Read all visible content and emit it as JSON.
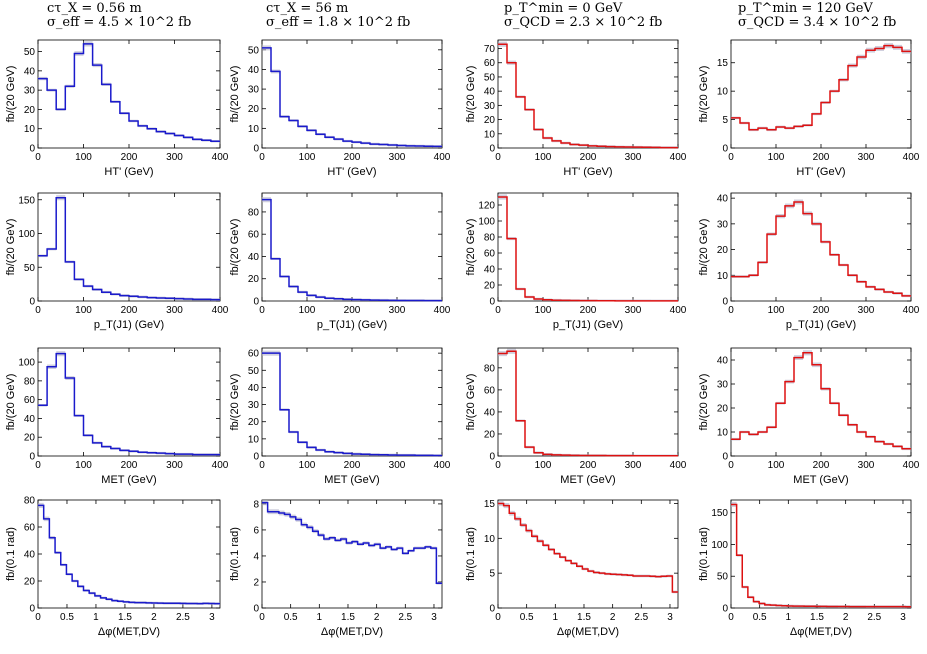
{
  "columns": [
    {
      "line1": "cτ_X = 0.56 m",
      "line2": "σ_eff = 4.5 × 10^2 fb"
    },
    {
      "line1": "cτ_X = 56 m",
      "line2": "σ_eff = 1.8 × 10^2 fb"
    },
    {
      "line1": "p_T^min = 0 GeV",
      "line2": "σ_QCD = 2.3 × 10^2 fb"
    },
    {
      "line1": "p_T^min = 120 GeV",
      "line2": "σ_QCD = 3.4 × 10^2 fb"
    }
  ],
  "colors": {
    "blue": "#1a1acc",
    "red": "#dd1111",
    "band": "#b0b0c8"
  },
  "chart_data": [
    {
      "type": "line",
      "step": true,
      "color": "red_or_blue",
      "row": 0,
      "col": 0,
      "xlabel": "HT' (GeV)",
      "ylabel": "fb/(20 GeV)",
      "xlim": [
        0,
        400
      ],
      "ylim": [
        0,
        56
      ],
      "xticks": [
        0,
        100,
        200,
        300,
        400
      ],
      "yticks": [
        0,
        10,
        20,
        30,
        40,
        50
      ],
      "series": [
        {
          "values": [
            36,
            30,
            20,
            32,
            49,
            54,
            43,
            33,
            24,
            18,
            14,
            11.5,
            10,
            8.5,
            7.5,
            6.5,
            5.5,
            4.5,
            4,
            3.5
          ]
        }
      ]
    },
    {
      "type": "line",
      "step": true,
      "row": 0,
      "col": 1,
      "xlabel": "HT' (GeV)",
      "ylabel": "fb/(20 GeV)",
      "xlim": [
        0,
        400
      ],
      "ylim": [
        0,
        55
      ],
      "xticks": [
        0,
        100,
        200,
        300,
        400
      ],
      "yticks": [
        0,
        10,
        20,
        30,
        40,
        50
      ],
      "series": [
        {
          "values": [
            51,
            39,
            16,
            14,
            11,
            9,
            7,
            5.5,
            4.5,
            3.5,
            3,
            2.5,
            2,
            1.8,
            1.5,
            1.3,
            1.1,
            1,
            0.9,
            0.8
          ]
        }
      ]
    },
    {
      "type": "line",
      "step": true,
      "row": 0,
      "col": 2,
      "xlabel": "HT' (GeV)",
      "ylabel": "fb/(20 GeV)",
      "xlim": [
        0,
        400
      ],
      "ylim": [
        0,
        76
      ],
      "xticks": [
        0,
        100,
        200,
        300,
        400
      ],
      "yticks": [
        0,
        10,
        20,
        30,
        40,
        50,
        60,
        70
      ],
      "series": [
        {
          "values": [
            73,
            60,
            36,
            27,
            13,
            7,
            5,
            3.5,
            2.5,
            2,
            1.5,
            1.2,
            1,
            0.8,
            0.7,
            0.6,
            0.5,
            0.4,
            0.3,
            0.3
          ]
        }
      ]
    },
    {
      "type": "line",
      "step": true,
      "row": 0,
      "col": 3,
      "xlabel": "HT' (GeV)",
      "ylabel": "fb/(20 GeV)",
      "xlim": [
        0,
        400
      ],
      "ylim": [
        0,
        19
      ],
      "xticks": [
        0,
        100,
        200,
        300,
        400
      ],
      "yticks": [
        0,
        5,
        10,
        15
      ],
      "series": [
        {
          "values": [
            5.3,
            4.4,
            3.2,
            3.5,
            3.2,
            3.7,
            3.5,
            3.8,
            4,
            6,
            8,
            10,
            12,
            14.5,
            16,
            17.2,
            17.5,
            18,
            17.7,
            17
          ]
        }
      ]
    },
    {
      "type": "line",
      "step": true,
      "row": 1,
      "col": 0,
      "xlabel": "p_T(J1) (GeV)",
      "ylabel": "fb/(20 GeV)",
      "xlim": [
        0,
        400
      ],
      "ylim": [
        0,
        160
      ],
      "xticks": [
        0,
        100,
        200,
        300,
        400
      ],
      "yticks": [
        0,
        50,
        100,
        150
      ],
      "series": [
        {
          "values": [
            67,
            77,
            153,
            58,
            32,
            22,
            17,
            13,
            10,
            8,
            7,
            6,
            5,
            4.5,
            4,
            3.5,
            3,
            2.5,
            2.5,
            2
          ]
        }
      ]
    },
    {
      "type": "line",
      "step": true,
      "row": 1,
      "col": 1,
      "xlabel": "p_T(J1) (GeV)",
      "ylabel": "fb/(20 GeV)",
      "xlim": [
        0,
        400
      ],
      "ylim": [
        0,
        97
      ],
      "xticks": [
        0,
        100,
        200,
        300,
        400
      ],
      "yticks": [
        0,
        20,
        40,
        60,
        80
      ],
      "series": [
        {
          "values": [
            91,
            38,
            22,
            13,
            8,
            5,
            3.5,
            2.5,
            2,
            1.5,
            1.2,
            1,
            0.8,
            0.7,
            0.6,
            0.5,
            0.4,
            0.4,
            0.3,
            0.3
          ]
        }
      ]
    },
    {
      "type": "line",
      "step": true,
      "row": 1,
      "col": 2,
      "xlabel": "p_T(J1) (GeV)",
      "ylabel": "fb/(20 GeV)",
      "xlim": [
        0,
        400
      ],
      "ylim": [
        0,
        135
      ],
      "xticks": [
        0,
        100,
        200,
        300,
        400
      ],
      "yticks": [
        0,
        20,
        40,
        60,
        80,
        100,
        120
      ],
      "series": [
        {
          "values": [
            130,
            78,
            15,
            5,
            2.5,
            1.5,
            1,
            0.8,
            0.6,
            0.5,
            0.4,
            0.3,
            0.3,
            0.2,
            0.2,
            0.2,
            0.2,
            0.1,
            0.1,
            0.1
          ]
        }
      ]
    },
    {
      "type": "line",
      "step": true,
      "row": 1,
      "col": 3,
      "xlabel": "p_T(J1) (GeV)",
      "ylabel": "fb/(20 GeV)",
      "xlim": [
        0,
        400
      ],
      "ylim": [
        0,
        42
      ],
      "xticks": [
        0,
        100,
        200,
        300,
        400
      ],
      "yticks": [
        0,
        10,
        20,
        30,
        40
      ],
      "series": [
        {
          "values": [
            9.5,
            9.5,
            10,
            15,
            26,
            33,
            37,
            38.5,
            34,
            30,
            23,
            18,
            14,
            10,
            7.5,
            5.5,
            4.5,
            3.5,
            3,
            2
          ]
        }
      ]
    },
    {
      "type": "line",
      "step": true,
      "row": 2,
      "col": 0,
      "xlabel": "MET (GeV)",
      "ylabel": "fb/(20 GeV)",
      "xlim": [
        0,
        400
      ],
      "ylim": [
        0,
        115
      ],
      "xticks": [
        0,
        100,
        200,
        300,
        400
      ],
      "yticks": [
        0,
        20,
        40,
        60,
        80,
        100
      ],
      "series": [
        {
          "values": [
            54,
            95,
            109,
            83,
            43,
            22,
            14,
            10,
            8,
            6,
            5,
            4,
            3.5,
            3,
            2.5,
            2,
            2,
            1.5,
            1.5,
            1.5
          ]
        }
      ]
    },
    {
      "type": "line",
      "step": true,
      "row": 2,
      "col": 1,
      "xlabel": "MET (GeV)",
      "ylabel": "fb/(20 GeV)",
      "xlim": [
        0,
        400
      ],
      "ylim": [
        0,
        63
      ],
      "xticks": [
        0,
        100,
        200,
        300,
        400
      ],
      "yticks": [
        0,
        10,
        20,
        30,
        40,
        50,
        60
      ],
      "series": [
        {
          "values": [
            60,
            60,
            27,
            14,
            8,
            5,
            3.5,
            2.5,
            2,
            1.5,
            1.2,
            1,
            0.8,
            0.7,
            0.6,
            0.5,
            0.5,
            0.4,
            0.4,
            0.3
          ]
        }
      ]
    },
    {
      "type": "line",
      "step": true,
      "row": 2,
      "col": 2,
      "xlabel": "MET (GeV)",
      "ylabel": "fb/(20 GeV)",
      "xlim": [
        0,
        400
      ],
      "ylim": [
        0,
        98
      ],
      "xticks": [
        0,
        100,
        200,
        300,
        400
      ],
      "yticks": [
        0,
        20,
        40,
        60,
        80
      ],
      "series": [
        {
          "values": [
            93,
            95,
            32,
            8,
            3,
            1.5,
            1,
            0.8,
            0.6,
            0.5,
            0.4,
            0.4,
            0.3,
            0.3,
            0.3,
            0.2,
            0.2,
            0.2,
            0.2,
            0.2
          ]
        }
      ]
    },
    {
      "type": "line",
      "step": true,
      "row": 2,
      "col": 3,
      "xlabel": "MET (GeV)",
      "ylabel": "fb/(20 GeV)",
      "xlim": [
        0,
        400
      ],
      "ylim": [
        0,
        45
      ],
      "xticks": [
        0,
        100,
        200,
        300,
        400
      ],
      "yticks": [
        0,
        10,
        20,
        30,
        40
      ],
      "series": [
        {
          "values": [
            7,
            10,
            9,
            10,
            12,
            22,
            31,
            41,
            43,
            38,
            28,
            22,
            17,
            13,
            10,
            8,
            6,
            5,
            4,
            3
          ]
        }
      ]
    },
    {
      "type": "line",
      "step": true,
      "row": 3,
      "col": 0,
      "xlabel": "Δφ(MET,DV)",
      "ylabel": "fb/(0.1 rad)",
      "xlim": [
        0,
        3.14
      ],
      "ylim": [
        0,
        80
      ],
      "xticks": [
        0,
        0.5,
        1,
        1.5,
        2,
        2.5,
        3
      ],
      "yticks": [
        0,
        20,
        40,
        60,
        80
      ],
      "series": [
        {
          "values": [
            76,
            66,
            52,
            41,
            32,
            25,
            20,
            16,
            13,
            11,
            9,
            7.5,
            6.5,
            5.5,
            5,
            4.5,
            4.2,
            4,
            4,
            3.8,
            3.7,
            3.6,
            3.5,
            3.5,
            3.5,
            3.4,
            3.3,
            3.3,
            3.2,
            3.4,
            3.3,
            3.2
          ]
        }
      ]
    },
    {
      "type": "line",
      "step": true,
      "row": 3,
      "col": 1,
      "xlabel": "Δφ(MET,DV)",
      "ylabel": "fb/(0.1 rad)",
      "xlim": [
        0,
        3.14
      ],
      "ylim": [
        0,
        8.3
      ],
      "xticks": [
        0,
        0.5,
        1,
        1.5,
        2,
        2.5,
        3
      ],
      "yticks": [
        0,
        2,
        4,
        6,
        8
      ],
      "series": [
        {
          "values": [
            8.1,
            7.4,
            7.4,
            7.3,
            7.2,
            7,
            6.8,
            6.4,
            6.2,
            5.9,
            5.6,
            5.3,
            5.4,
            5.2,
            5.3,
            5.0,
            5.1,
            4.9,
            5.0,
            4.8,
            4.9,
            4.6,
            4.7,
            4.5,
            4.6,
            4.2,
            4.4,
            4.6,
            4.6,
            4.7,
            4.6,
            1.9
          ]
        }
      ]
    },
    {
      "type": "line",
      "step": true,
      "row": 3,
      "col": 2,
      "xlabel": "Δφ(MET,DV)",
      "ylabel": "fb/(0.1 rad)",
      "xlim": [
        0,
        3.14
      ],
      "ylim": [
        0,
        15.5
      ],
      "xticks": [
        0,
        0.5,
        1,
        1.5,
        2,
        2.5,
        3
      ],
      "yticks": [
        0,
        5,
        10,
        15
      ],
      "series": [
        {
          "values": [
            15,
            14.7,
            13.6,
            12.8,
            11.9,
            11.1,
            10.3,
            9.6,
            9,
            8.4,
            7.8,
            7.3,
            6.8,
            6.4,
            6.0,
            5.6,
            5.3,
            5.1,
            5.0,
            4.9,
            4.85,
            4.8,
            4.75,
            4.7,
            4.6,
            4.6,
            4.6,
            4.55,
            4.5,
            4.55,
            4.6,
            2.3
          ]
        }
      ]
    },
    {
      "type": "line",
      "step": true,
      "row": 3,
      "col": 3,
      "xlabel": "Δφ(MET,DV)",
      "ylabel": "fb/(0.1 rad)",
      "xlim": [
        0,
        3.14
      ],
      "ylim": [
        0,
        170
      ],
      "xticks": [
        0,
        0.5,
        1,
        1.5,
        2,
        2.5,
        3
      ],
      "yticks": [
        0,
        50,
        100,
        150
      ],
      "series": [
        {
          "values": [
            163,
            83,
            33,
            17,
            10,
            7,
            5,
            4.5,
            4,
            3.5,
            3.2,
            3,
            2.9,
            2.8,
            2.7,
            2.6,
            2.5,
            2.4,
            2.4,
            2.3,
            2.3,
            2.2,
            2.2,
            2.2,
            2.1,
            2.1,
            2.1,
            2.1,
            2.1,
            2.1,
            2.1,
            2.0
          ]
        }
      ]
    }
  ]
}
